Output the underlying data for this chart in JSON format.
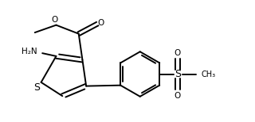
{
  "bg_color": "#ffffff",
  "lw": 1.4,
  "fs": 7.5,
  "figsize": [
    3.2,
    1.54
  ],
  "dpi": 100,
  "xlim": [
    0,
    10
  ],
  "ylim": [
    0,
    4.8125
  ]
}
